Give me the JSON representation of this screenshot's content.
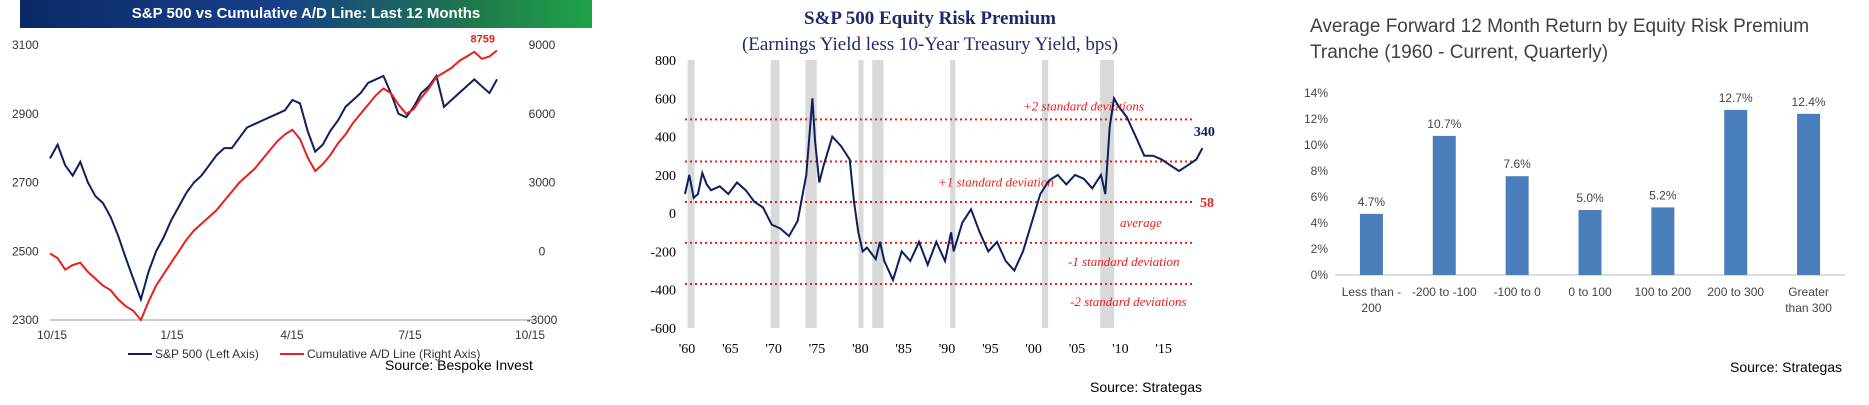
{
  "chart_data": [
    {
      "type": "line",
      "title": "S&P 500 vs Cumulative A/D Line: Last 12 Months",
      "source": "Source:  Bespoke Invest",
      "x_ticks": [
        "10/15",
        "1/15",
        "4/15",
        "7/15",
        "10/15"
      ],
      "y_left_ticks": [
        "3100",
        "2900",
        "2700",
        "2500",
        "2300"
      ],
      "y_right_ticks": [
        "9000",
        "6000",
        "3000",
        "0",
        "-3000"
      ],
      "ylim_left": [
        2300,
        3100
      ],
      "ylim_right": [
        -3000,
        9000
      ],
      "end_label": "8759",
      "colors": {
        "sp500": "#0d1f5c",
        "ad_line": "#e8201d"
      },
      "series": [
        {
          "name": "S&P 500 (Left Axis)",
          "axis": "left",
          "values": [
            2770,
            2810,
            2750,
            2720,
            2760,
            2700,
            2660,
            2640,
            2600,
            2545,
            2480,
            2420,
            2360,
            2440,
            2500,
            2540,
            2590,
            2630,
            2670,
            2700,
            2720,
            2750,
            2780,
            2800,
            2800,
            2830,
            2860,
            2870,
            2880,
            2890,
            2900,
            2910,
            2940,
            2930,
            2850,
            2790,
            2810,
            2850,
            2880,
            2920,
            2940,
            2960,
            2990,
            3000,
            3010,
            2960,
            2900,
            2890,
            2920,
            2960,
            2980,
            3010,
            2920,
            2940,
            2960,
            2980,
            3000,
            2980,
            2960,
            3000
          ]
        },
        {
          "name": "Cumulative A/D Line (Right Axis)",
          "axis": "right",
          "values": [
            -100,
            -300,
            -800,
            -600,
            -500,
            -900,
            -1200,
            -1500,
            -1700,
            -2100,
            -2400,
            -2600,
            -3000,
            -2200,
            -1500,
            -1000,
            -500,
            0,
            500,
            900,
            1200,
            1500,
            1800,
            2200,
            2600,
            3000,
            3300,
            3600,
            4000,
            4400,
            4800,
            5100,
            5300,
            4900,
            4100,
            3500,
            3800,
            4200,
            4700,
            5100,
            5600,
            6000,
            6400,
            6800,
            7100,
            6900,
            6400,
            6000,
            6200,
            6700,
            7100,
            7600,
            7800,
            8000,
            8300,
            8500,
            8700,
            8400,
            8500,
            8759
          ]
        }
      ]
    },
    {
      "type": "line",
      "title": "S&P 500 Equity Risk Premium",
      "subtitle": "(Earnings Yield less 10-Year Treasury Yield, bps)",
      "source": "Source:  Strategas",
      "x_ticks": [
        "'60",
        "'65",
        "'70",
        "'75",
        "'80",
        "'85",
        "'90",
        "'95",
        "'00",
        "'05",
        "'10",
        "'15"
      ],
      "y_ticks": [
        "800",
        "600",
        "400",
        "200",
        "0",
        "-200",
        "-400",
        "-600"
      ],
      "xlim": [
        1960,
        2020
      ],
      "ylim": [
        -600,
        800
      ],
      "end_label": "340",
      "average_label": "58",
      "colors": {
        "line": "#0d1f5c",
        "bands": "#d9d9d9",
        "reference": "#e8201d"
      },
      "recession_bands": [
        [
          1960.3,
          1961.1
        ],
        [
          1969.9,
          1970.9
        ],
        [
          1973.9,
          1975.2
        ],
        [
          1980.0,
          1980.6
        ],
        [
          1981.6,
          1982.9
        ],
        [
          1990.6,
          1991.2
        ],
        [
          2001.2,
          2001.9
        ],
        [
          2007.9,
          2009.5
        ]
      ],
      "reference_lines": [
        {
          "label": "+2 standard deviations",
          "value": 490
        },
        {
          "label": "+1 standard deviation",
          "value": 270
        },
        {
          "label": "average",
          "value": 58
        },
        {
          "label": "-1 standard deviation",
          "value": -155
        },
        {
          "label": "-2 standard deviations",
          "value": -370
        }
      ],
      "x": [
        1960,
        1960.5,
        1961,
        1961.5,
        1962,
        1962.5,
        1963,
        1964,
        1965,
        1966,
        1967,
        1968,
        1969,
        1970,
        1971,
        1972,
        1973,
        1974,
        1974.7,
        1975,
        1975.5,
        1976,
        1977,
        1978,
        1979,
        1979.5,
        1980,
        1980.5,
        1981,
        1982,
        1982.5,
        1983,
        1984,
        1985,
        1986,
        1987,
        1988,
        1989,
        1990,
        1990.7,
        1991,
        1992,
        1993,
        1994,
        1995,
        1996,
        1997,
        1998,
        1999,
        2000,
        2001,
        2002,
        2003,
        2004,
        2005,
        2006,
        2007,
        2008,
        2008.5,
        2009,
        2009.5,
        2010,
        2011,
        2012,
        2013,
        2014,
        2015,
        2016,
        2017,
        2018,
        2019,
        2019.7
      ],
      "values": [
        100,
        200,
        80,
        100,
        210,
        150,
        120,
        140,
        100,
        160,
        120,
        60,
        30,
        -60,
        -80,
        -120,
        -40,
        200,
        600,
        380,
        160,
        250,
        400,
        350,
        280,
        60,
        -100,
        -200,
        -180,
        -240,
        -150,
        -250,
        -350,
        -200,
        -250,
        -150,
        -270,
        -150,
        -250,
        -100,
        -200,
        -50,
        20,
        -100,
        -200,
        -150,
        -250,
        -300,
        -200,
        -50,
        100,
        170,
        200,
        150,
        200,
        180,
        130,
        200,
        100,
        450,
        600,
        560,
        500,
        400,
        300,
        300,
        280,
        250,
        220,
        250,
        280,
        340
      ]
    },
    {
      "type": "bar",
      "title": "Average Forward 12 Month Return by Equity Risk Premium Tranche (1960 - Current, Quarterly)",
      "source": "Source:  Strategas",
      "categories": [
        "Less than -200",
        "-200 to -100",
        "-100 to 0",
        "0 to 100",
        "100 to 200",
        "200 to 300",
        "Greater than 300"
      ],
      "values": [
        4.7,
        10.7,
        7.6,
        5.0,
        5.2,
        12.7,
        12.4
      ],
      "value_labels": [
        "4.7%",
        "10.7%",
        "7.6%",
        "5.0%",
        "5.2%",
        "12.7%",
        "12.4%"
      ],
      "y_ticks": [
        "14%",
        "12%",
        "10%",
        "8%",
        "6%",
        "4%",
        "2%",
        "0%"
      ],
      "ylim": [
        0,
        14
      ],
      "bar_color": "#4a7ebb"
    }
  ]
}
